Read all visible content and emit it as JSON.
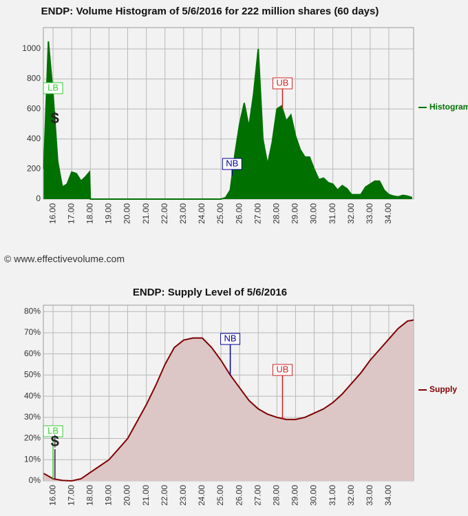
{
  "copyright": "© www.effectivevolume.com",
  "chart_data": [
    {
      "type": "area",
      "title": "ENDP: Volume Histogram of 5/6/2016 for 222 million shares (60 days)",
      "x": [
        15.5,
        15.75,
        16.0,
        16.25,
        16.5,
        16.75,
        17.0,
        17.25,
        17.5,
        17.75,
        17.95,
        18.0,
        25.0,
        25.25,
        25.5,
        25.75,
        26.0,
        26.25,
        26.5,
        26.75,
        27.0,
        27.25,
        27.5,
        27.75,
        28.0,
        28.25,
        28.5,
        28.75,
        29.0,
        29.25,
        29.5,
        29.75,
        30.0,
        30.25,
        30.5,
        30.75,
        31.0,
        31.25,
        31.5,
        31.75,
        32.0,
        32.25,
        32.5,
        32.75,
        33.0,
        33.25,
        33.5,
        33.75,
        34.0,
        34.25,
        34.5,
        34.75,
        35.0,
        35.25
      ],
      "series": [
        {
          "name": "Histogram",
          "color": "#007000",
          "values": [
            200,
            1050,
            700,
            250,
            80,
            100,
            180,
            170,
            120,
            150,
            180,
            0,
            0,
            10,
            60,
            300,
            500,
            640,
            480,
            700,
            1000,
            400,
            230,
            380,
            600,
            620,
            520,
            560,
            420,
            330,
            280,
            280,
            200,
            130,
            140,
            110,
            100,
            60,
            90,
            70,
            30,
            30,
            30,
            80,
            100,
            120,
            120,
            60,
            30,
            20,
            15,
            25,
            20,
            10
          ]
        }
      ],
      "xlim": [
        15.48,
        35.33
      ],
      "xticks": [
        {
          "value": 16,
          "label": "16.00"
        },
        {
          "value": 17,
          "label": "17.00"
        },
        {
          "value": 18,
          "label": "18.00"
        },
        {
          "value": 19,
          "label": "19.00"
        },
        {
          "value": 20,
          "label": "20.00"
        },
        {
          "value": 21,
          "label": "21.00"
        },
        {
          "value": 22,
          "label": "22.00"
        },
        {
          "value": 23,
          "label": "23.00"
        },
        {
          "value": 24,
          "label": "24.00"
        },
        {
          "value": 25,
          "label": "25.00"
        },
        {
          "value": 26,
          "label": "26.00"
        },
        {
          "value": 27,
          "label": "27.00"
        },
        {
          "value": 28,
          "label": "28.00"
        },
        {
          "value": 29,
          "label": "29.00"
        },
        {
          "value": 30,
          "label": "30.00"
        },
        {
          "value": 31,
          "label": "31.00"
        },
        {
          "value": 32,
          "label": "32.00"
        },
        {
          "value": 33,
          "label": "33.00"
        },
        {
          "value": 34,
          "label": "34.00"
        }
      ],
      "ylim": [
        0,
        1142
      ],
      "yticks": [
        0,
        200,
        400,
        600,
        800,
        1000
      ],
      "grid": true,
      "legend": "right",
      "markers": [
        {
          "label": "LB",
          "x": 16.0,
          "color": "#33cc33"
        },
        {
          "label": "$",
          "x": 16.1,
          "color": "#222222"
        },
        {
          "label": "NB",
          "x": 25.6,
          "color": "#000099"
        },
        {
          "label": "UB",
          "x": 28.3,
          "color": "#cc2222"
        }
      ]
    },
    {
      "type": "area",
      "title": "ENDP: Supply Level of 5/6/2016",
      "x": [
        15.5,
        16.0,
        16.5,
        17.0,
        17.5,
        18.0,
        18.5,
        19.0,
        19.5,
        20.0,
        20.5,
        21.0,
        21.5,
        22.0,
        22.5,
        23.0,
        23.5,
        24.0,
        24.5,
        25.0,
        25.5,
        26.0,
        26.5,
        27.0,
        27.5,
        28.0,
        28.5,
        29.0,
        29.5,
        30.0,
        30.5,
        31.0,
        31.5,
        32.0,
        32.5,
        33.0,
        33.5,
        34.0,
        34.5,
        35.0,
        35.33
      ],
      "series": [
        {
          "name": "Supply",
          "color": "#800000",
          "fill": "#dcc6c6",
          "values": [
            3.5,
            1,
            0.2,
            0,
            1,
            4,
            7,
            10,
            15,
            20,
            28,
            36,
            45,
            55,
            63,
            66.5,
            67.5,
            67.5,
            63,
            57,
            50,
            44,
            38,
            34,
            31.5,
            30,
            29,
            29,
            30,
            32,
            34,
            37,
            41,
            46,
            51,
            57,
            62,
            67,
            72,
            75.5,
            76
          ]
        }
      ],
      "xlim": [
        15.48,
        35.33
      ],
      "xticks": [
        {
          "value": 16,
          "label": "16.00"
        },
        {
          "value": 17,
          "label": "17.00"
        },
        {
          "value": 18,
          "label": "18.00"
        },
        {
          "value": 19,
          "label": "19.00"
        },
        {
          "value": 20,
          "label": "20.00"
        },
        {
          "value": 21,
          "label": "21.00"
        },
        {
          "value": 22,
          "label": "22.00"
        },
        {
          "value": 23,
          "label": "23.00"
        },
        {
          "value": 24,
          "label": "24.00"
        },
        {
          "value": 25,
          "label": "25.00"
        },
        {
          "value": 26,
          "label": "26.00"
        },
        {
          "value": 27,
          "label": "27.00"
        },
        {
          "value": 28,
          "label": "28.00"
        },
        {
          "value": 29,
          "label": "29.00"
        },
        {
          "value": 30,
          "label": "30.00"
        },
        {
          "value": 31,
          "label": "31.00"
        },
        {
          "value": 32,
          "label": "32.00"
        },
        {
          "value": 33,
          "label": "33.00"
        },
        {
          "value": 34,
          "label": "34.00"
        }
      ],
      "ylim": [
        0,
        83
      ],
      "yticks": [
        {
          "value": 0,
          "label": "0%"
        },
        {
          "value": 10,
          "label": "10%"
        },
        {
          "value": 20,
          "label": "20%"
        },
        {
          "value": 30,
          "label": "30%"
        },
        {
          "value": 40,
          "label": "40%"
        },
        {
          "value": 50,
          "label": "50%"
        },
        {
          "value": 60,
          "label": "60%"
        },
        {
          "value": 70,
          "label": "70%"
        },
        {
          "value": 80,
          "label": "80%"
        }
      ],
      "grid": true,
      "legend": "right",
      "markers": [
        {
          "label": "LB",
          "x": 16.0,
          "color": "#33cc33"
        },
        {
          "label": "$",
          "x": 16.1,
          "color": "#222222"
        },
        {
          "label": "NB",
          "x": 25.5,
          "color": "#000099"
        },
        {
          "label": "UB",
          "x": 28.3,
          "color": "#cc2222"
        }
      ]
    }
  ]
}
